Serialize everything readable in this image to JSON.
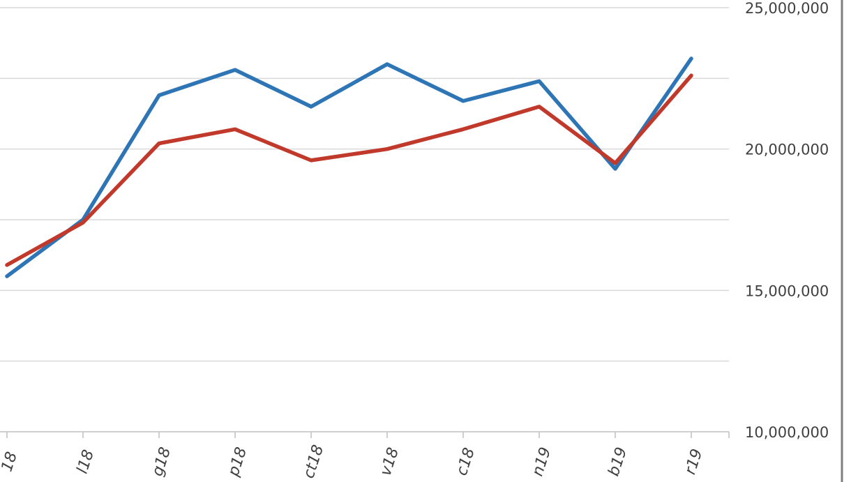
{
  "chart_data": {
    "type": "line",
    "categories": [
      "18",
      "l18",
      "g18",
      "p18",
      "ct18",
      "v18",
      "c18",
      "n19",
      "b19",
      "r19"
    ],
    "series": [
      {
        "color": "#2e75b6",
        "values": [
          15500000,
          17500000,
          21900000,
          22800000,
          21500000,
          23000000,
          21700000,
          22400000,
          19300000,
          23200000
        ]
      },
      {
        "color": "#c0392b",
        "values": [
          15900000,
          17400000,
          20200000,
          20700000,
          19600000,
          20000000,
          20700000,
          21500000,
          19500000,
          22600000
        ]
      }
    ],
    "y_ticks": [
      {
        "value": 10000000,
        "label": "10,000,000"
      },
      {
        "value": 15000000,
        "label": "15,000,000"
      },
      {
        "value": 20000000,
        "label": "20,000,000"
      },
      {
        "value": 25000000,
        "label": "25,000,000"
      }
    ],
    "minor_gridlines": [
      12500000,
      17500000,
      22500000
    ],
    "ylim": [
      10000000,
      25000000
    ],
    "y_axis_position": "right",
    "grid": true,
    "legend": "none"
  }
}
